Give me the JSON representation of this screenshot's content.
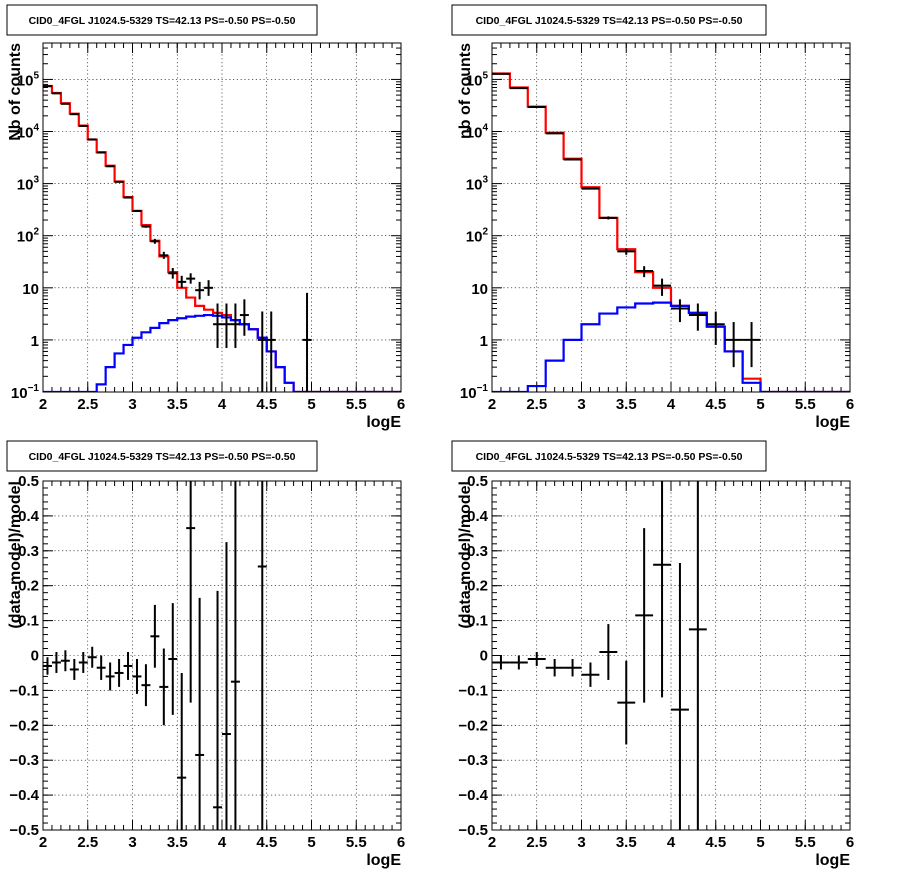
{
  "colors": {
    "data": "#000000",
    "total_model": "#ff0000",
    "source_model": "#0000ff"
  },
  "chart_data": [
    {
      "type": "line",
      "title": "CID0_4FGL J1024.5-5329 TS=42.13 PS=-0.50 PS=-0.50",
      "xlabel": "logE",
      "ylabel": "Nb of counts",
      "xlim": [
        2,
        6
      ],
      "ylim": [
        0.1,
        500000
      ],
      "yscale": "log",
      "grid": true,
      "xticks": [
        "2",
        "2.5",
        "3",
        "3.5",
        "4",
        "4.5",
        "5",
        "5.5",
        "6"
      ],
      "yticks": [
        {
          "v": 0.1,
          "base": "10",
          "sup": "−1"
        },
        {
          "v": 1,
          "base": "1",
          "sup": ""
        },
        {
          "v": 10,
          "base": "10",
          "sup": ""
        },
        {
          "v": 100,
          "base": "10",
          "sup": "2"
        },
        {
          "v": 1000,
          "base": "10",
          "sup": "3"
        },
        {
          "v": 10000,
          "base": "10",
          "sup": "4"
        },
        {
          "v": 100000,
          "base": "10",
          "sup": "5"
        }
      ],
      "bin_edges": [
        2.0,
        2.1,
        2.2,
        2.3,
        2.4,
        2.5,
        2.6,
        2.7,
        2.8,
        2.9,
        3.0,
        3.1,
        3.2,
        3.3,
        3.4,
        3.5,
        3.6,
        3.7,
        3.8,
        3.9,
        4.0,
        4.1,
        4.2,
        4.3,
        4.4,
        4.5,
        4.6,
        4.7,
        4.8,
        4.9,
        5.0,
        5.1,
        5.2,
        5.3,
        5.4,
        5.5,
        5.6,
        5.7,
        5.8,
        5.9,
        6.0
      ],
      "series": [
        {
          "kind": "hist",
          "color": "#ff0000",
          "values": [
            75000,
            55000,
            35000,
            22000,
            13000,
            7000,
            4000,
            2200,
            1100,
            550,
            300,
            160,
            80,
            40,
            20,
            10,
            6.5,
            4.5,
            3.8,
            3.3,
            3.0,
            2.4,
            2.0,
            1.6,
            1.1,
            0.6,
            0.3,
            0.15,
            0.1,
            0.1,
            0.1,
            0.1,
            0.1,
            0.1,
            0.1,
            0.1,
            0.1,
            0.1,
            0.1,
            0.1
          ]
        },
        {
          "kind": "hist",
          "color": "#0000ff",
          "values": [
            0.1,
            0.1,
            0.1,
            0.1,
            0.1,
            0.1,
            0.14,
            0.3,
            0.55,
            0.8,
            1.1,
            1.4,
            1.7,
            2.1,
            2.4,
            2.6,
            2.8,
            2.9,
            3.0,
            2.9,
            2.7,
            2.4,
            2.0,
            1.6,
            1.1,
            0.6,
            0.3,
            0.15,
            0.1,
            0.1,
            0.1,
            0.1,
            0.1,
            0.1,
            0.1,
            0.1,
            0.1,
            0.1,
            0.1,
            0.1
          ]
        },
        {
          "kind": "points",
          "color": "#000000",
          "x": [
            2.05,
            2.15,
            2.25,
            2.35,
            2.45,
            2.55,
            2.65,
            2.75,
            2.85,
            2.95,
            3.05,
            3.15,
            3.25,
            3.35,
            3.45,
            3.55,
            3.65,
            3.75,
            3.85,
            3.95,
            4.05,
            4.15,
            4.25,
            4.45,
            4.55,
            4.95
          ],
          "y": [
            74000,
            54000,
            34000,
            21500,
            12800,
            7050,
            3950,
            2150,
            1080,
            540,
            298,
            150,
            78,
            42,
            19,
            13,
            15,
            9,
            10,
            2,
            2,
            2,
            3,
            1,
            1,
            1
          ],
          "ylo": [
            72000,
            52500,
            33000,
            21000,
            12500,
            6900,
            3850,
            2100,
            1050,
            520,
            285,
            142,
            70,
            36,
            15,
            10,
            12,
            6,
            7,
            0.7,
            0.7,
            0.7,
            1.2,
            0.1,
            0.1,
            0.1
          ],
          "yhi": [
            76000,
            55500,
            35000,
            22000,
            13100,
            7200,
            4050,
            2200,
            1110,
            560,
            312,
            158,
            87,
            49,
            24,
            17,
            19,
            13,
            14,
            5,
            5,
            5,
            6,
            3.5,
            3.5,
            8
          ]
        }
      ]
    },
    {
      "type": "line",
      "title": "CID0_4FGL J1024.5-5329 TS=42.13 PS=-0.50 PS=-0.50",
      "xlabel": "logE",
      "ylabel": "nb of counts",
      "xlim": [
        2,
        6
      ],
      "ylim": [
        0.1,
        500000
      ],
      "yscale": "log",
      "grid": true,
      "xticks": [
        "2",
        "2.5",
        "3",
        "3.5",
        "4",
        "4.5",
        "5",
        "5.5",
        "6"
      ],
      "yticks": [
        {
          "v": 0.1,
          "base": "10",
          "sup": "−1"
        },
        {
          "v": 1,
          "base": "1",
          "sup": ""
        },
        {
          "v": 10,
          "base": "10",
          "sup": ""
        },
        {
          "v": 100,
          "base": "10",
          "sup": "2"
        },
        {
          "v": 1000,
          "base": "10",
          "sup": "3"
        },
        {
          "v": 10000,
          "base": "10",
          "sup": "4"
        },
        {
          "v": 100000,
          "base": "10",
          "sup": "5"
        }
      ],
      "bin_edges": [
        2.0,
        2.2,
        2.4,
        2.6,
        2.8,
        3.0,
        3.2,
        3.4,
        3.6,
        3.8,
        4.0,
        4.2,
        4.4,
        4.6,
        4.8,
        5.0,
        5.2,
        5.4,
        5.6,
        5.8,
        6.0
      ],
      "series": [
        {
          "kind": "hist",
          "color": "#ff0000",
          "values": [
            130000,
            70000,
            30000,
            9500,
            3000,
            850,
            220,
            55,
            20,
            10,
            4.5,
            3.3,
            1.8,
            0.6,
            0.18,
            0.1,
            0.1,
            0.1,
            0.1,
            0.1
          ]
        },
        {
          "kind": "hist",
          "color": "#0000ff",
          "values": [
            0.1,
            0.1,
            0.13,
            0.4,
            1.0,
            2.0,
            3.2,
            4.2,
            5.0,
            5.2,
            4.5,
            3.3,
            1.8,
            0.6,
            0.15,
            0.1,
            0.1,
            0.1,
            0.1,
            0.1
          ]
        },
        {
          "kind": "points",
          "color": "#000000",
          "x": [
            2.1,
            2.3,
            2.5,
            2.7,
            2.9,
            3.1,
            3.3,
            3.5,
            3.7,
            3.9,
            4.1,
            4.3,
            4.5,
            4.7,
            4.9
          ],
          "y": [
            128000,
            68000,
            29500,
            9200,
            2900,
            800,
            220,
            50,
            21,
            11,
            4,
            3,
            2,
            1,
            1
          ],
          "ylo": [
            127000,
            67500,
            29200,
            9000,
            2850,
            780,
            205,
            43,
            16,
            7,
            2.2,
            1.5,
            0.8,
            0.3,
            0.3
          ],
          "yhi": [
            129000,
            68500,
            29800,
            9400,
            2950,
            820,
            235,
            57,
            26,
            15,
            6,
            5,
            3.5,
            2.2,
            2.2
          ]
        }
      ]
    },
    {
      "type": "scatter",
      "title": "CID0_4FGL J1024.5-5329 TS=42.13 PS=-0.50 PS=-0.50",
      "xlabel": "logE",
      "ylabel": "(data-model)/model",
      "xlim": [
        2,
        6
      ],
      "ylim": [
        -0.5,
        0.5
      ],
      "yscale": "linear",
      "grid": true,
      "xticks": [
        "2",
        "2.5",
        "3",
        "3.5",
        "4",
        "4.5",
        "5",
        "5.5",
        "6"
      ],
      "yticks": [
        "−0.5",
        "−0.4",
        "−0.3",
        "−0.2",
        "−0.1",
        "0",
        "0.1",
        "0.2",
        "0.3",
        "0.4",
        "0.5"
      ],
      "series": [
        {
          "kind": "points",
          "color": "#000000",
          "x": [
            2.05,
            2.15,
            2.25,
            2.35,
            2.45,
            2.55,
            2.65,
            2.75,
            2.85,
            2.95,
            3.05,
            3.15,
            3.25,
            3.35,
            3.45,
            3.55,
            3.65,
            3.75,
            3.95,
            4.05,
            4.15,
            4.45
          ],
          "y": [
            -0.03,
            -0.02,
            -0.015,
            -0.04,
            -0.02,
            -0.005,
            -0.035,
            -0.06,
            -0.05,
            -0.03,
            -0.06,
            -0.085,
            0.055,
            -0.09,
            -0.01,
            -0.35,
            0.365,
            -0.285,
            -0.435,
            -0.225,
            -0.075,
            0.255
          ],
          "err": [
            0.025,
            0.03,
            0.03,
            0.03,
            0.03,
            0.03,
            0.035,
            0.04,
            0.04,
            0.04,
            0.05,
            0.06,
            0.09,
            0.11,
            0.16,
            0.3,
            0.5,
            0.45,
            0.62,
            0.55,
            0.8,
            1.3
          ]
        }
      ]
    },
    {
      "type": "scatter",
      "title": "CID0_4FGL J1024.5-5329 TS=42.13 PS=-0.50 PS=-0.50",
      "xlabel": "logE",
      "ylabel": "(data-model)/model",
      "xlim": [
        2,
        6
      ],
      "ylim": [
        -0.5,
        0.5
      ],
      "yscale": "linear",
      "grid": true,
      "xticks": [
        "2",
        "2.5",
        "3",
        "3.5",
        "4",
        "4.5",
        "5",
        "5.5",
        "6"
      ],
      "yticks": [
        "−0.5",
        "−0.4",
        "−0.3",
        "−0.2",
        "−0.1",
        "0",
        "0.1",
        "0.2",
        "0.3",
        "0.4",
        "0.5"
      ],
      "series": [
        {
          "kind": "points",
          "color": "#000000",
          "x": [
            2.1,
            2.3,
            2.5,
            2.7,
            2.9,
            3.1,
            3.3,
            3.5,
            3.7,
            3.9,
            4.1,
            4.3
          ],
          "y": [
            -0.02,
            -0.02,
            -0.01,
            -0.035,
            -0.035,
            -0.055,
            0.01,
            -0.135,
            0.115,
            0.26,
            -0.155,
            0.075
          ],
          "err": [
            0.02,
            0.02,
            0.02,
            0.025,
            0.025,
            0.035,
            0.08,
            0.12,
            0.25,
            0.38,
            0.42,
            0.8
          ]
        }
      ]
    }
  ]
}
